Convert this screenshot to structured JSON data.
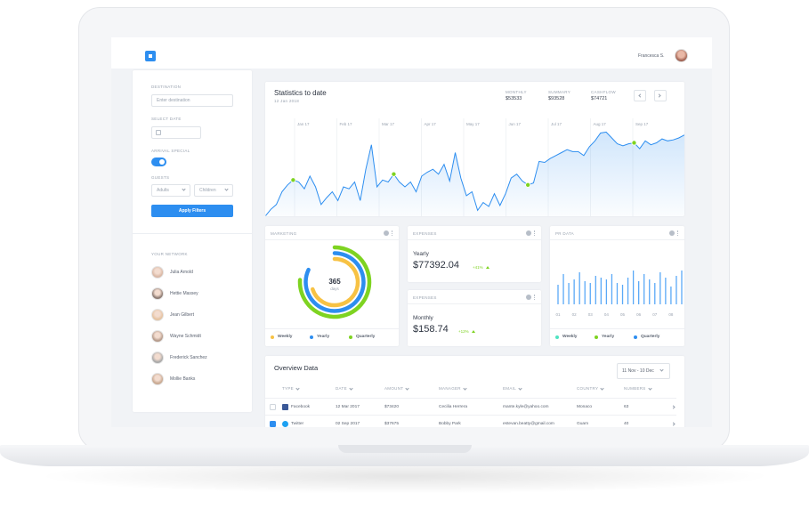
{
  "header": {
    "user": "Francesca S."
  },
  "filters": {
    "destination_label": "DESTINATION",
    "destination_placeholder": "Enter destination",
    "date_label": "SELECT DATE",
    "arrival_label": "ARRIVAL SPECIAL",
    "guests_label": "GUESTS",
    "adults": "Adults",
    "children": "Children",
    "button": "Apply Filters"
  },
  "network": {
    "title": "YOUR NETWORK",
    "people": [
      "Julia Arnold",
      "Hettie Massey",
      "Jean Gilbert",
      "Wayne Schmidt",
      "Frederick Sanchez",
      "Mollie Banks"
    ]
  },
  "statistics": {
    "summary": [
      {
        "label": "MONTHLY",
        "value": "$53533"
      },
      {
        "label": "SUMMARY",
        "value": "$93528"
      },
      {
        "label": "CASHFLOW",
        "value": "$74721"
      }
    ]
  },
  "chart_data": [
    {
      "type": "area",
      "title": "Statistics to date",
      "subtitle": "12 Jan 2018",
      "months": [
        "Jan 17",
        "Feb 17",
        "Mar 17",
        "Apr 17",
        "May 17",
        "Jun 17",
        "Jul 17",
        "Aug 17",
        "Sep 17"
      ],
      "values": [
        0,
        7,
        12,
        25,
        32,
        37,
        35,
        28,
        41,
        30,
        12,
        19,
        25,
        16,
        30,
        28,
        35,
        16,
        48,
        73,
        30,
        37,
        35,
        43,
        35,
        30,
        35,
        25,
        41,
        45,
        48,
        43,
        53,
        36,
        65,
        39,
        21,
        25,
        6,
        14,
        10,
        23,
        11,
        23,
        39,
        43,
        36,
        32,
        34,
        56,
        55,
        59,
        62,
        65,
        68,
        66,
        66,
        62,
        71,
        77,
        85,
        86,
        80,
        74,
        72,
        74,
        75,
        69,
        77,
        73,
        75,
        79,
        77,
        78,
        80,
        83
      ],
      "ylim": [
        0,
        100
      ],
      "color": "#2d8ef0",
      "highlights": [
        5,
        23,
        47,
        66
      ],
      "highlight_color": "#7ed321"
    },
    {
      "type": "donut",
      "title": "MARKETING",
      "center_value": 365,
      "center_label": "days",
      "categories": [
        "Weekly",
        "Yearly",
        "Quarterly"
      ],
      "values": [
        70,
        82,
        76
      ],
      "colors": [
        "#f7c244",
        "#2d8ef0",
        "#7ed321"
      ]
    },
    {
      "type": "bar",
      "title": "PR DATA",
      "categories": [
        "01",
        null,
        null,
        "02",
        null,
        null,
        "03",
        null,
        null,
        "04",
        null,
        null,
        "05",
        null,
        null,
        "06",
        null,
        null,
        "07",
        null,
        null,
        "08",
        null,
        null
      ],
      "values": [
        55,
        85,
        60,
        70,
        90,
        65,
        60,
        80,
        75,
        70,
        85,
        60,
        55,
        75,
        95,
        65,
        85,
        70,
        60,
        90,
        75,
        50,
        80,
        95
      ],
      "ylim": [
        0,
        100
      ],
      "color": "#5aa9f7",
      "legend": [
        {
          "name": "Weekly",
          "color": "#50e3c2"
        },
        {
          "name": "Yearly",
          "color": "#7ed321"
        },
        {
          "name": "Quarterly",
          "color": "#2d8ef0"
        }
      ]
    }
  ],
  "expenses": [
    {
      "title": "EXPENSES",
      "period": "Yearly",
      "amount": "$77392.04",
      "change": "+41%"
    },
    {
      "title": "EXPENSES",
      "period": "Monthly",
      "amount": "$158.74",
      "change": "+12%"
    }
  ],
  "overview": {
    "title": "Overview Data",
    "range": "11 Nov - 10 Dec",
    "columns": [
      "TYPE",
      "DATE",
      "AMOUNT",
      "MANAGER",
      "EMAIL",
      "COUNTRY",
      "NUMBERS"
    ],
    "rows": [
      [
        "Facebook",
        "12 Mar 2017",
        "$73420",
        "Cecilia Herrera",
        "mante.kyle@yahoo.com",
        "Monaco",
        63
      ],
      [
        "Twitter",
        "02 Sep 2017",
        "$37675",
        "Bobby Park",
        "estevan.beatty@gmail.com",
        "Guam",
        40
      ]
    ],
    "checked": [
      false,
      true
    ]
  }
}
